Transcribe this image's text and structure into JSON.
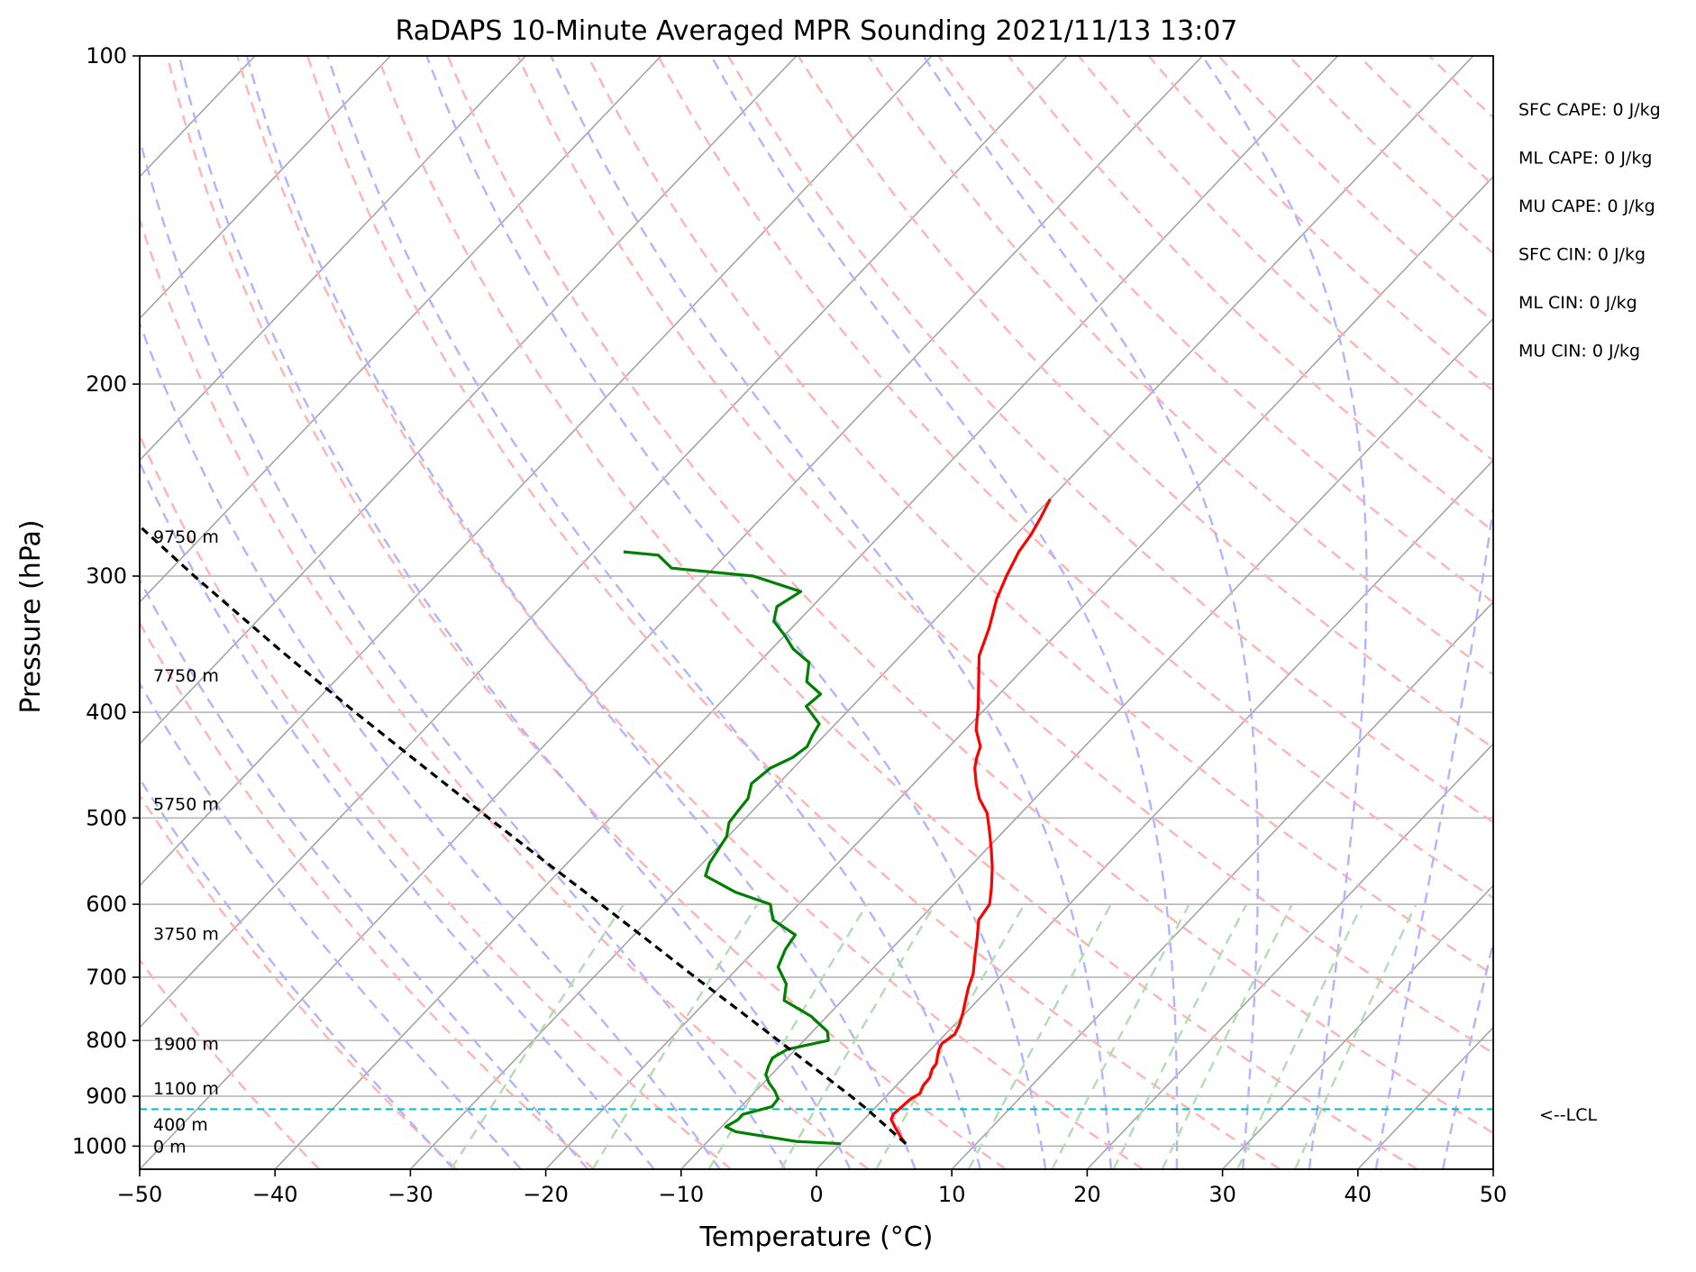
{
  "chart_data": {
    "type": "line",
    "title": "RaDAPS 10-Minute Averaged MPR Sounding 2021/11/13 13:07",
    "xlabel": "Temperature (°C)",
    "ylabel": "Pressure (hPa)",
    "xlim": [
      -50,
      50
    ],
    "ylim": [
      1050,
      100
    ],
    "y_scale": "log",
    "x_ticks": [
      -50,
      -40,
      -30,
      -20,
      -10,
      0,
      10,
      20,
      30,
      40,
      50
    ],
    "x_tick_labels": [
      "−50",
      "−40",
      "−30",
      "−20",
      "−10",
      "0",
      "10",
      "20",
      "30",
      "40",
      "50"
    ],
    "y_ticks": [
      100,
      200,
      300,
      400,
      500,
      600,
      700,
      800,
      900,
      1000
    ],
    "y_tick_labels": [
      "100",
      "200",
      "300",
      "400",
      "500",
      "600",
      "700",
      "800",
      "900",
      "1000"
    ],
    "grid": true,
    "skew": true,
    "colors": {
      "temperature": "#ff0000",
      "dewpoint": "#008000",
      "parcel": "#000000",
      "lcl": "#00bfbf",
      "dry_adiabat": "#ffb3b3",
      "moist_adiabat": "#b3b3ff",
      "mixing_ratio": "#b3dcb3",
      "isotherm": "#a0a0a0"
    },
    "series": [
      {
        "role": "temperature",
        "pressure": [
          995,
          980,
          960,
          945,
          935,
          920,
          905,
          895,
          880,
          865,
          850,
          840,
          825,
          815,
          805,
          790,
          775,
          755,
          735,
          715,
          695,
          670,
          645,
          620,
          600,
          580,
          555,
          535,
          515,
          495,
          480,
          465,
          450,
          440,
          430,
          415,
          395,
          375,
          355,
          335,
          315,
          300,
          285,
          275,
          265,
          255
        ],
        "temp": [
          4.8,
          3.9,
          2.8,
          2.0,
          1.8,
          1.9,
          2.0,
          2.3,
          2.0,
          1.9,
          1.5,
          1.4,
          0.9,
          0.6,
          0.4,
          0.7,
          0.4,
          -0.2,
          -0.9,
          -1.6,
          -2.2,
          -3.3,
          -4.4,
          -5.6,
          -5.9,
          -6.9,
          -8.3,
          -9.6,
          -11.0,
          -12.5,
          -14.1,
          -15.4,
          -16.6,
          -17.2,
          -17.7,
          -19.2,
          -20.7,
          -22.4,
          -24.2,
          -25.4,
          -26.9,
          -27.8,
          -28.6,
          -28.9,
          -29.4,
          -30.0
        ]
      },
      {
        "role": "dewpoint",
        "pressure": [
          995,
          990,
          980,
          970,
          960,
          950,
          945,
          935,
          920,
          905,
          890,
          875,
          860,
          845,
          830,
          815,
          800,
          785,
          760,
          735,
          710,
          685,
          660,
          640,
          620,
          600,
          585,
          565,
          550,
          520,
          505,
          490,
          480,
          465,
          450,
          440,
          430,
          420,
          410,
          395,
          385,
          375,
          360,
          350,
          340,
          330,
          320,
          310,
          300,
          295,
          287,
          285,
          285
        ],
        "dewp": [
          0.0,
          -3.5,
          -6.0,
          -8.6,
          -9.7,
          -9.4,
          -9.3,
          -9.3,
          -7.7,
          -7.8,
          -8.6,
          -9.6,
          -10.4,
          -10.8,
          -11.1,
          -10.6,
          -8.2,
          -8.9,
          -11.2,
          -14.3,
          -15.3,
          -17.1,
          -17.8,
          -18.1,
          -20.8,
          -22.1,
          -25.5,
          -28.9,
          -29.5,
          -30.1,
          -30.9,
          -31.1,
          -31.2,
          -32.0,
          -31.7,
          -30.8,
          -30.5,
          -30.9,
          -31.2,
          -33.4,
          -33.2,
          -35.1,
          -36.3,
          -38.4,
          -40.0,
          -41.8,
          -42.6,
          -41.9,
          -46.5,
          -53.1,
          -55.0,
          -57.8,
          -57.8
        ]
      },
      {
        "role": "parcel",
        "pressure": [
          995,
          925,
          900,
          850,
          800,
          750,
          700,
          650,
          600,
          550,
          500,
          450,
          400,
          350,
          300,
          265
        ],
        "temp": [
          4.8,
          -0.5,
          -2.6,
          -7.1,
          -11.9,
          -17.0,
          -22.5,
          -28.3,
          -34.6,
          -41.5,
          -49.0,
          -57.2,
          -66.3,
          -76.4,
          -87.8,
          -96.7
        ]
      }
    ],
    "lcl": {
      "pressure": 925,
      "label": "<--LCL"
    },
    "height_labels": [
      {
        "text": "0 m",
        "pressure": 1000
      },
      {
        "text": "400 m",
        "pressure": 955
      },
      {
        "text": "1100 m",
        "pressure": 885
      },
      {
        "text": "1900 m",
        "pressure": 805
      },
      {
        "text": "3750 m",
        "pressure": 638
      },
      {
        "text": "5750 m",
        "pressure": 485
      },
      {
        "text": "7750 m",
        "pressure": 370
      },
      {
        "text": "9750 m",
        "pressure": 276
      }
    ],
    "indices": [
      "SFC CAPE: 0 J/kg",
      "ML CAPE: 0 J/kg",
      "MU CAPE: 0 J/kg",
      "SFC CIN: 0 J/kg",
      "ML CIN: 0 J/kg",
      "MU CIN: 0 J/kg"
    ]
  }
}
